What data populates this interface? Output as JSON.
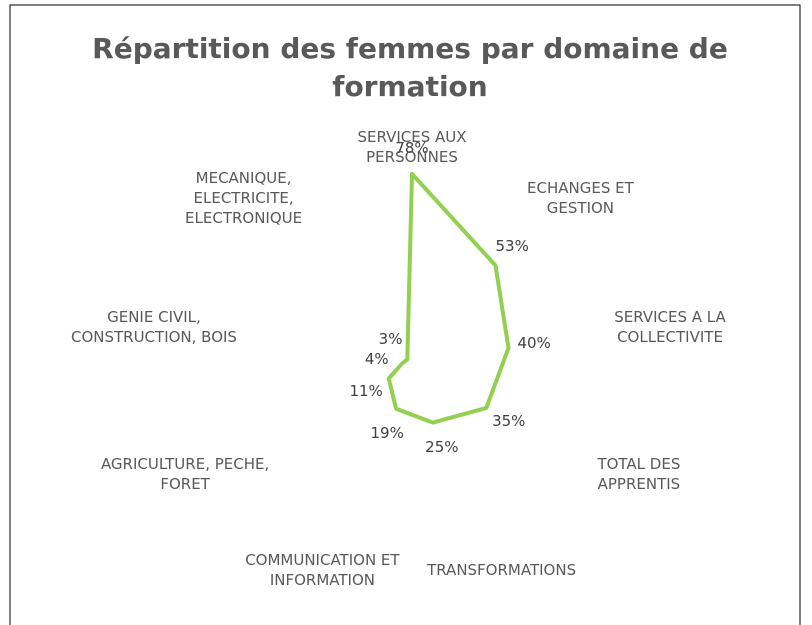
{
  "chart_data": {
    "type": "radar",
    "title": "Répartition des femmes par domaine de formation",
    "categories": [
      "SERVICES AUX PERSONNES",
      "ECHANGES ET GESTION",
      "SERVICES A LA COLLECTIVITE",
      "TOTAL DES APPRENTIS",
      "TRANSFORMATIONS",
      "COMMUNICATION ET INFORMATION",
      "AGRICULTURE, PECHE, FORET",
      "GENIE CIVIL, CONSTRUCTION, BOIS",
      "MECANIQUE, ELECTRICITE, ELECTRONIQUE"
    ],
    "values": [
      78,
      53,
      40,
      35,
      25,
      19,
      11,
      4,
      3
    ],
    "value_labels": [
      "78%",
      "53%",
      "40%",
      "35%",
      "25%",
      "19%",
      "11%",
      "4%",
      "3%"
    ],
    "color": "#92d050",
    "ylim": [
      0,
      100
    ]
  }
}
